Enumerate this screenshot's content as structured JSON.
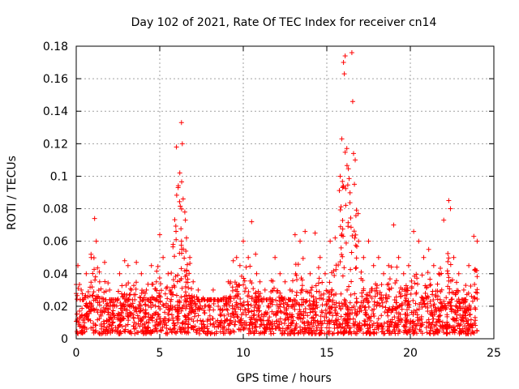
{
  "chart_data": {
    "type": "scatter",
    "title": "Day 102 of 2021, Rate Of TEC Index for receiver cn14",
    "xlabel": "GPS time / hours",
    "ylabel": "ROTI / TECUs",
    "xlim": [
      0,
      25
    ],
    "ylim": [
      0,
      0.18
    ],
    "x_ticks": [
      0,
      5,
      10,
      15,
      20,
      25
    ],
    "x_tick_labels": [
      "0",
      "5",
      "10",
      "15",
      "20",
      "25"
    ],
    "y_ticks": [
      0,
      0.02,
      0.04,
      0.06,
      0.08,
      0.1,
      0.12,
      0.14,
      0.16,
      0.18
    ],
    "y_tick_labels": [
      "0",
      "0.02",
      "0.04",
      "0.06",
      "0.08",
      "0.1",
      "0.12",
      "0.14",
      "0.16",
      "0.18"
    ],
    "grid": true,
    "legend": "none",
    "series": [
      {
        "name": "ROTI",
        "marker": "plus",
        "color": "#ff0000",
        "x": [
          0.1,
          0.3,
          0.6,
          0.9,
          1.1,
          1.2,
          1.4,
          1.7,
          2.0,
          2.3,
          2.6,
          2.9,
          3.1,
          3.3,
          3.6,
          3.9,
          4.2,
          4.5,
          4.8,
          5.0,
          5.2,
          5.5,
          5.8,
          6.0,
          6.1,
          6.2,
          6.3,
          6.35,
          6.4,
          6.5,
          6.6,
          6.8,
          7.0,
          7.3,
          7.6,
          7.9,
          8.2,
          8.5,
          8.8,
          9.1,
          9.4,
          9.6,
          9.8,
          10.0,
          10.3,
          10.5,
          10.8,
          11.0,
          11.3,
          11.6,
          11.9,
          12.2,
          12.5,
          12.8,
          13.1,
          13.4,
          13.7,
          14.0,
          14.3,
          14.6,
          14.9,
          15.2,
          15.5,
          15.8,
          15.9,
          16.0,
          16.05,
          16.1,
          16.5,
          16.55,
          16.6,
          16.7,
          16.9,
          17.2,
          17.5,
          17.8,
          18.1,
          18.4,
          18.7,
          19.0,
          19.3,
          19.6,
          19.9,
          20.2,
          20.5,
          20.8,
          21.1,
          21.4,
          21.7,
          22.0,
          22.3,
          22.4,
          22.6,
          22.9,
          23.2,
          23.5,
          23.8,
          24.0
        ],
        "y": [
          0.045,
          0.03,
          0.04,
          0.05,
          0.074,
          0.06,
          0.035,
          0.047,
          0.03,
          0.02,
          0.04,
          0.048,
          0.045,
          0.03,
          0.047,
          0.04,
          0.03,
          0.045,
          0.035,
          0.064,
          0.05,
          0.04,
          0.058,
          0.118,
          0.093,
          0.102,
          0.133,
          0.12,
          0.086,
          0.078,
          0.062,
          0.05,
          0.035,
          0.03,
          0.025,
          0.02,
          0.03,
          0.02,
          0.025,
          0.035,
          0.048,
          0.05,
          0.045,
          0.06,
          0.05,
          0.072,
          0.04,
          0.035,
          0.03,
          0.025,
          0.05,
          0.04,
          0.035,
          0.03,
          0.064,
          0.06,
          0.066,
          0.04,
          0.065,
          0.05,
          0.04,
          0.06,
          0.062,
          0.1,
          0.123,
          0.17,
          0.163,
          0.174,
          0.176,
          0.146,
          0.114,
          0.11,
          0.06,
          0.05,
          0.06,
          0.045,
          0.05,
          0.04,
          0.045,
          0.07,
          0.05,
          0.04,
          0.045,
          0.066,
          0.06,
          0.05,
          0.055,
          0.045,
          0.04,
          0.073,
          0.085,
          0.08,
          0.05,
          0.04,
          0.03,
          0.045,
          0.063,
          0.06
        ],
        "baseline_band": [
          0.003,
          0.024
        ],
        "note": "Dense cloud of points between roughly 0.003 and 0.024 TECU across 0-24 h, with sporadic peaks as listed"
      }
    ]
  }
}
